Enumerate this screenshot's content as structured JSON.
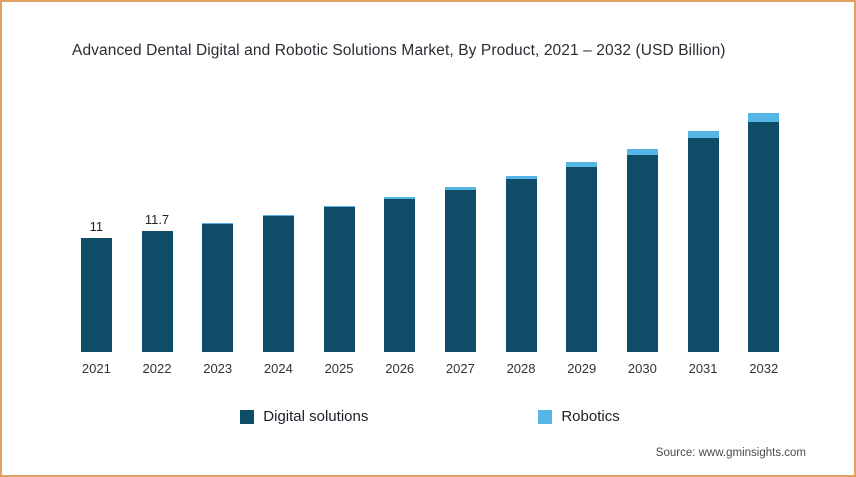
{
  "title": "Advanced Dental Digital and Robotic Solutions Market, By Product, 2021 – 2032 (USD Billion)",
  "source": "Source: www.gminsights.com",
  "colors": {
    "digital": "#0f4c67",
    "robotics": "#55b5e5",
    "border": "#dfa164"
  },
  "legend": [
    {
      "label": "Digital solutions",
      "color": "#0f4c67"
    },
    {
      "label": "Robotics",
      "color": "#55b5e5"
    }
  ],
  "chart_data": {
    "type": "bar",
    "stacked": true,
    "title": "Advanced Dental Digital and Robotic Solutions Market, By Product, 2021 – 2032 (USD Billion)",
    "xlabel": "",
    "ylabel": "USD Billion",
    "ylim": [
      0,
      24
    ],
    "grid": false,
    "legend_position": "bottom",
    "categories": [
      "2021",
      "2022",
      "2023",
      "2024",
      "2025",
      "2026",
      "2027",
      "2028",
      "2029",
      "2030",
      "2031",
      "2032"
    ],
    "series": [
      {
        "name": "Digital solutions",
        "color": "#0f4c67",
        "values": [
          11,
          11.7,
          12.4,
          13.2,
          14.0,
          14.8,
          15.7,
          16.7,
          17.9,
          19.1,
          20.7,
          22.3
        ]
      },
      {
        "name": "Robotics",
        "color": "#55b5e5",
        "values": [
          0.05,
          0.06,
          0.08,
          0.1,
          0.15,
          0.2,
          0.3,
          0.35,
          0.45,
          0.55,
          0.65,
          0.8
        ]
      }
    ],
    "bar_labels": [
      "11",
      "11.7",
      "",
      "",
      "",
      "",
      "",
      "",
      "",
      "",
      "",
      ""
    ]
  }
}
